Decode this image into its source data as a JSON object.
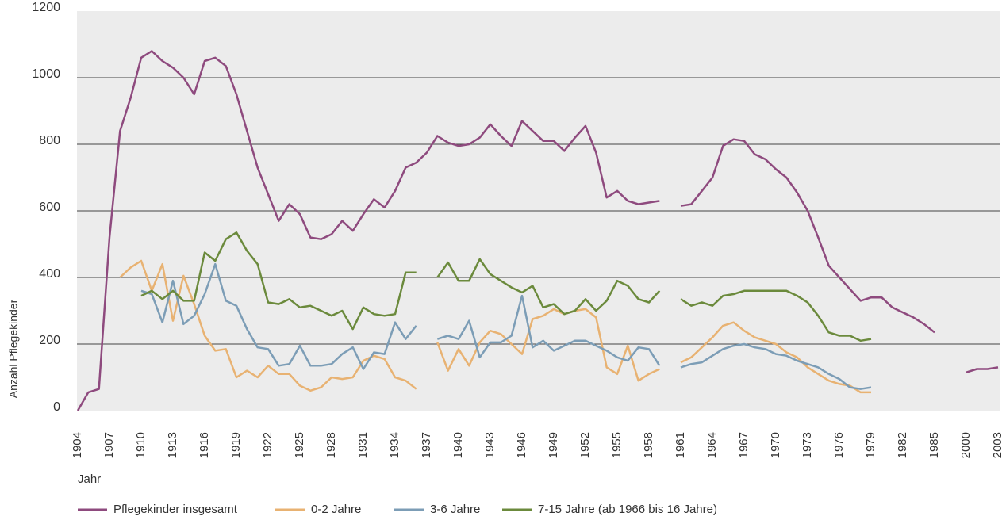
{
  "chart_data": {
    "type": "line",
    "y_label": "Anzahl Pflegekinder",
    "x_label": "Jahr",
    "categories": [
      "1904",
      null,
      null,
      "1907",
      null,
      null,
      "1910",
      null,
      null,
      "1913",
      null,
      null,
      "1916",
      null,
      null,
      "1919",
      null,
      null,
      "1922",
      null,
      null,
      "1925",
      null,
      null,
      "1928",
      null,
      null,
      "1931",
      null,
      null,
      "1934",
      null,
      null,
      "1937",
      null,
      null,
      "1940",
      null,
      null,
      "1943",
      null,
      null,
      "1946",
      null,
      null,
      "1949",
      null,
      null,
      "1952",
      null,
      null,
      "1955",
      null,
      null,
      "1958",
      null,
      null,
      "1961",
      null,
      null,
      "1964",
      null,
      null,
      "1967",
      null,
      null,
      "1970",
      null,
      null,
      "1973",
      null,
      null,
      "1976",
      null,
      null,
      "1979",
      null,
      null,
      "1982",
      null,
      null,
      "1985",
      null,
      null,
      "2000",
      null,
      null,
      "2003"
    ],
    "ylim": [
      0,
      1200
    ],
    "yticks": [
      0,
      200,
      400,
      600,
      800,
      1000,
      1200
    ],
    "grid": true,
    "series": [
      {
        "name": "Pflegekinder insgesamt",
        "color": "#8e4a7e",
        "values": [
          0,
          55,
          65,
          520,
          840,
          940,
          1060,
          1080,
          1050,
          1030,
          1000,
          950,
          1050,
          1060,
          1035,
          950,
          840,
          730,
          650,
          570,
          620,
          590,
          520,
          515,
          530,
          570,
          540,
          590,
          635,
          610,
          660,
          730,
          745,
          775,
          825,
          805,
          795,
          800,
          820,
          860,
          825,
          795,
          870,
          840,
          810,
          810,
          780,
          820,
          855,
          775,
          640,
          660,
          630,
          620,
          625,
          630,
          null,
          615,
          620,
          660,
          700,
          795,
          815,
          810,
          770,
          755,
          725,
          700,
          655,
          600,
          520,
          435,
          400,
          365,
          330,
          340,
          340,
          310,
          295,
          280,
          260,
          235,
          null,
          null,
          115,
          125,
          125,
          130
        ]
      },
      {
        "name": "0-2 Jahre",
        "color": "#e8b272",
        "values": [
          null,
          null,
          null,
          null,
          400,
          430,
          450,
          360,
          440,
          270,
          405,
          320,
          225,
          180,
          185,
          100,
          120,
          100,
          135,
          110,
          110,
          75,
          60,
          70,
          100,
          95,
          100,
          150,
          165,
          155,
          100,
          90,
          65,
          null,
          205,
          120,
          185,
          135,
          205,
          240,
          230,
          200,
          170,
          275,
          285,
          305,
          290,
          300,
          305,
          280,
          130,
          110,
          195,
          90,
          110,
          125,
          null,
          145,
          160,
          190,
          220,
          255,
          265,
          240,
          220,
          210,
          200,
          175,
          160,
          130,
          110,
          90,
          80,
          75,
          55,
          55,
          null,
          null,
          null,
          null,
          null,
          null,
          null,
          null,
          null,
          null,
          null,
          null
        ]
      },
      {
        "name": "3-6 Jahre",
        "color": "#7c9db6",
        "values": [
          null,
          null,
          null,
          null,
          null,
          null,
          360,
          350,
          265,
          390,
          260,
          285,
          350,
          440,
          330,
          315,
          245,
          190,
          185,
          135,
          140,
          195,
          135,
          135,
          140,
          170,
          190,
          125,
          175,
          170,
          265,
          215,
          255,
          null,
          215,
          225,
          215,
          270,
          160,
          205,
          205,
          225,
          345,
          190,
          210,
          180,
          195,
          210,
          210,
          195,
          180,
          160,
          150,
          190,
          185,
          135,
          null,
          130,
          140,
          145,
          165,
          185,
          195,
          200,
          190,
          185,
          170,
          165,
          150,
          140,
          130,
          110,
          95,
          70,
          65,
          70,
          null,
          null,
          null,
          null,
          null,
          null,
          null,
          null,
          null,
          null,
          null,
          null
        ]
      },
      {
        "name": "7-15 Jahre (ab 1966 bis 16 Jahre)",
        "color": "#6b8a3c",
        "values": [
          null,
          null,
          null,
          null,
          null,
          null,
          345,
          360,
          335,
          360,
          330,
          330,
          475,
          450,
          515,
          535,
          480,
          440,
          325,
          320,
          335,
          310,
          315,
          300,
          285,
          300,
          245,
          310,
          290,
          285,
          290,
          415,
          415,
          null,
          400,
          445,
          390,
          390,
          455,
          410,
          390,
          370,
          355,
          375,
          310,
          320,
          290,
          300,
          335,
          300,
          330,
          390,
          375,
          335,
          325,
          360,
          null,
          335,
          315,
          325,
          315,
          345,
          350,
          360,
          360,
          360,
          360,
          360,
          345,
          325,
          285,
          235,
          225,
          225,
          210,
          215,
          null,
          null,
          null,
          null,
          null,
          null,
          null,
          null,
          null,
          null,
          null,
          null
        ]
      }
    ]
  }
}
